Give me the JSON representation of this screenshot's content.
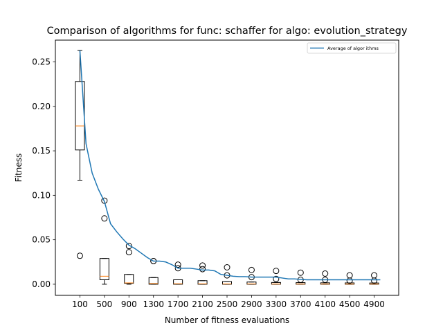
{
  "chart_data": {
    "type": "box+line",
    "title": "Comparison of algorithms for func: schaffer for algo: evolution_strategy",
    "xlabel": "Number of fitness evaluations",
    "ylabel": "Fitness",
    "xlim": [
      -300,
      5300
    ],
    "ylim": [
      -0.0125,
      0.2745
    ],
    "x_ticks": [
      100,
      500,
      900,
      1300,
      1700,
      2100,
      2500,
      2900,
      3300,
      3700,
      4100,
      4500,
      4900
    ],
    "y_ticks": [
      0.0,
      0.05,
      0.1,
      0.15,
      0.2,
      0.25
    ],
    "y_tick_labels": [
      "0.00",
      "0.05",
      "0.10",
      "0.15",
      "0.20",
      "0.25"
    ],
    "grid": false,
    "legend_placement": "top-right",
    "box_color": "#000000",
    "median_color": "#ff7f0e",
    "line_color": "#1f77b4",
    "boxes": [
      {
        "x": 100,
        "whislo": 0.117,
        "q1": 0.151,
        "med": 0.178,
        "q3": 0.228,
        "whishi": 0.263,
        "fliers": [
          0.032
        ]
      },
      {
        "x": 500,
        "whislo": 0.0,
        "q1": 0.005,
        "med": 0.009,
        "q3": 0.029,
        "whishi": 0.029,
        "fliers": [
          0.094,
          0.074
        ]
      },
      {
        "x": 900,
        "whislo": 0.0,
        "q1": 0.001,
        "med": 0.0015,
        "q3": 0.011,
        "whishi": 0.011,
        "fliers": [
          0.043,
          0.036
        ]
      },
      {
        "x": 1300,
        "whislo": 0.0,
        "q1": 0.0,
        "med": 0.0008,
        "q3": 0.0075,
        "whishi": 0.0075,
        "fliers": [
          0.026,
          0.026
        ]
      },
      {
        "x": 1700,
        "whislo": 0.0,
        "q1": 0.0,
        "med": 0.0005,
        "q3": 0.005,
        "whishi": 0.005,
        "fliers": [
          0.022,
          0.018
        ]
      },
      {
        "x": 2100,
        "whislo": 0.0,
        "q1": 0.0,
        "med": 0.0004,
        "q3": 0.004,
        "whishi": 0.004,
        "fliers": [
          0.021,
          0.017
        ]
      },
      {
        "x": 2500,
        "whislo": 0.0,
        "q1": 0.0,
        "med": 0.0003,
        "q3": 0.003,
        "whishi": 0.003,
        "fliers": [
          0.019,
          0.01
        ]
      },
      {
        "x": 2900,
        "whislo": 0.0,
        "q1": 0.0,
        "med": 0.0003,
        "q3": 0.0025,
        "whishi": 0.0025,
        "fliers": [
          0.016,
          0.008
        ]
      },
      {
        "x": 3300,
        "whislo": 0.0,
        "q1": 0.0,
        "med": 0.0002,
        "q3": 0.002,
        "whishi": 0.002,
        "fliers": [
          0.015,
          0.006
        ]
      },
      {
        "x": 3700,
        "whislo": 0.0,
        "q1": 0.0,
        "med": 0.0002,
        "q3": 0.0018,
        "whishi": 0.0018,
        "fliers": [
          0.013,
          0.005
        ]
      },
      {
        "x": 4100,
        "whislo": 0.0,
        "q1": 0.0,
        "med": 0.0002,
        "q3": 0.0016,
        "whishi": 0.0016,
        "fliers": [
          0.012,
          0.005
        ]
      },
      {
        "x": 4500,
        "whislo": 0.0,
        "q1": 0.0,
        "med": 0.0002,
        "q3": 0.0015,
        "whishi": 0.0015,
        "fliers": [
          0.01,
          0.004
        ]
      },
      {
        "x": 4900,
        "whislo": 0.0,
        "q1": 0.0,
        "med": 0.0002,
        "q3": 0.0014,
        "whishi": 0.0014,
        "fliers": [
          0.01,
          0.004
        ]
      }
    ],
    "series": [
      {
        "name": "Average of algor ithms",
        "x": [
          100,
          200,
          300,
          400,
          500,
          600,
          700,
          800,
          900,
          1000,
          1100,
          1200,
          1300,
          1400,
          1500,
          1600,
          1700,
          1800,
          1900,
          2000,
          2100,
          2200,
          2300,
          2400,
          2500,
          2600,
          2700,
          2800,
          2900,
          3000,
          3100,
          3200,
          3300,
          3400,
          3500,
          3600,
          3700,
          3800,
          3900,
          4000,
          4100,
          4200,
          4300,
          4400,
          4500,
          4600,
          4700,
          4800,
          4900,
          5000
        ],
        "y": [
          0.263,
          0.158,
          0.125,
          0.107,
          0.093,
          0.068,
          0.059,
          0.051,
          0.044,
          0.04,
          0.035,
          0.03,
          0.026,
          0.026,
          0.025,
          0.022,
          0.018,
          0.018,
          0.018,
          0.017,
          0.016,
          0.016,
          0.015,
          0.011,
          0.01,
          0.009,
          0.0085,
          0.0085,
          0.008,
          0.008,
          0.008,
          0.008,
          0.008,
          0.007,
          0.006,
          0.006,
          0.0055,
          0.005,
          0.005,
          0.005,
          0.005,
          0.005,
          0.005,
          0.005,
          0.005,
          0.005,
          0.005,
          0.005,
          0.005,
          0.005
        ]
      }
    ]
  }
}
